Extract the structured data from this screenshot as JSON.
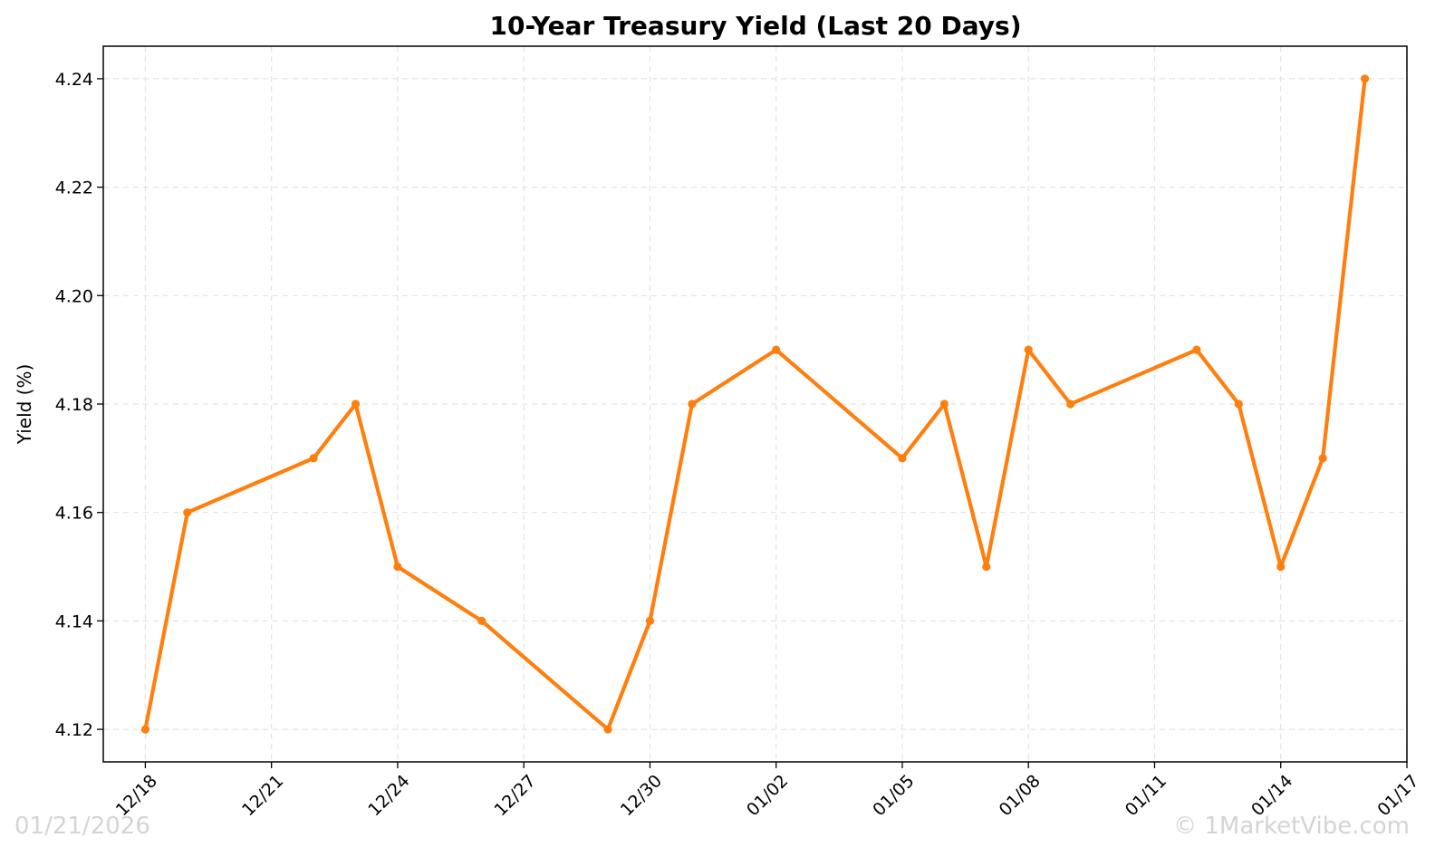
{
  "chart_data": {
    "type": "line",
    "title": "10-Year Treasury Yield (Last 20 Days)",
    "xlabel": "",
    "ylabel": "Yield (%)",
    "grid": true,
    "ylim": [
      4.114,
      4.246
    ],
    "xlim": [
      "2025-12-17",
      "2026-01-17"
    ],
    "y_ticks": [
      4.12,
      4.14,
      4.16,
      4.18,
      4.2,
      4.22,
      4.24
    ],
    "y_tick_labels": [
      "4.12",
      "4.14",
      "4.16",
      "4.18",
      "4.20",
      "4.22",
      "4.24"
    ],
    "x_ticks": [
      "2025-12-18",
      "2025-12-21",
      "2025-12-24",
      "2025-12-27",
      "2025-12-30",
      "2026-01-02",
      "2026-01-05",
      "2026-01-08",
      "2026-01-11",
      "2026-01-14",
      "2026-01-17"
    ],
    "x_tick_labels": [
      "12/18",
      "12/21",
      "12/24",
      "12/27",
      "12/30",
      "01/02",
      "01/05",
      "01/08",
      "01/11",
      "01/14",
      "01/17"
    ],
    "series": [
      {
        "color": "#ff7f0e",
        "x": [
          "2025-12-18",
          "2025-12-19",
          "2025-12-22",
          "2025-12-23",
          "2025-12-24",
          "2025-12-26",
          "2025-12-29",
          "2025-12-30",
          "2025-12-31",
          "2026-01-02",
          "2026-01-05",
          "2026-01-06",
          "2026-01-07",
          "2026-01-08",
          "2026-01-09",
          "2026-01-12",
          "2026-01-13",
          "2026-01-14",
          "2026-01-15",
          "2026-01-16"
        ],
        "values": [
          4.12,
          4.16,
          4.17,
          4.18,
          4.15,
          4.14,
          4.12,
          4.14,
          4.18,
          4.19,
          4.17,
          4.18,
          4.15,
          4.19,
          4.18,
          4.19,
          4.18,
          4.15,
          4.17,
          4.24
        ]
      }
    ]
  },
  "watermarks": {
    "date": "01/21/2026",
    "source": "© 1MarketVibe.com"
  }
}
